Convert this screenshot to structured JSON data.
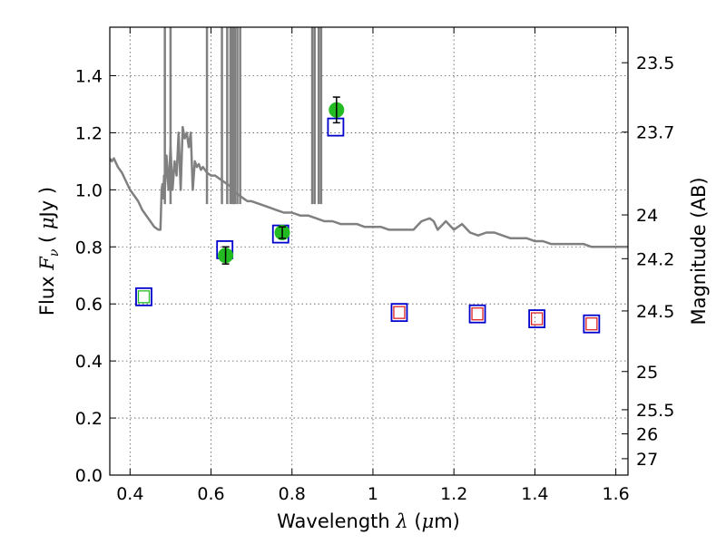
{
  "chart_data": {
    "type": "scatter",
    "xlabel": {
      "prefix": "Wavelength  ",
      "symbol": "λ",
      "suffix_open": " (",
      "unit_greek": "μ",
      "unit": "m)"
    },
    "ylabel": {
      "prefix": "Flux  ",
      "symbol": "F",
      "subscript": "ν",
      "suffix_open": "  ( ",
      "unit_greek": "μ",
      "unit": "Jy )"
    },
    "y2label": "Magnitude (AB)",
    "xlim": [
      0.35,
      1.63
    ],
    "ylim": [
      0.0,
      1.57
    ],
    "grid": true,
    "x_ticks": [
      {
        "value": 0.4,
        "label": "0.4"
      },
      {
        "value": 0.6,
        "label": "0.6"
      },
      {
        "value": 0.8,
        "label": "0.8"
      },
      {
        "value": 1.0,
        "label": "1"
      },
      {
        "value": 1.2,
        "label": "1.2"
      },
      {
        "value": 1.4,
        "label": "1.4"
      },
      {
        "value": 1.6,
        "label": "1.6"
      }
    ],
    "y_ticks": [
      {
        "value": 0.0,
        "label": "0.0"
      },
      {
        "value": 0.2,
        "label": "0.2"
      },
      {
        "value": 0.4,
        "label": "0.4"
      },
      {
        "value": 0.6,
        "label": "0.6"
      },
      {
        "value": 0.8,
        "label": "0.8"
      },
      {
        "value": 1.0,
        "label": "1.0"
      },
      {
        "value": 1.2,
        "label": "1.2"
      },
      {
        "value": 1.4,
        "label": "1.4"
      }
    ],
    "y2_ticks": [
      {
        "value": 23.5,
        "label": "23.5"
      },
      {
        "value": 23.7,
        "label": "23.7"
      },
      {
        "value": 24.0,
        "label": "24"
      },
      {
        "value": 24.2,
        "label": "24.2"
      },
      {
        "value": 24.5,
        "label": "24.5"
      },
      {
        "value": 25.0,
        "label": "25"
      },
      {
        "value": 25.5,
        "label": "25.5"
      },
      {
        "value": 26.0,
        "label": "26"
      },
      {
        "value": 27.0,
        "label": "27"
      }
    ],
    "colors": {
      "model": "#808080",
      "observed": "#22bb22",
      "model_photometry": "#0000cc",
      "green_square": "#22bb22",
      "red_square": "#dd2222",
      "errorbar": "#000000",
      "grid": "#555555"
    },
    "series": [
      {
        "kind": "model-spectrum",
        "x": [
          0.35,
          0.355,
          0.36,
          0.37,
          0.38,
          0.39,
          0.4,
          0.41,
          0.42,
          0.43,
          0.44,
          0.45,
          0.46,
          0.47,
          0.475,
          0.478,
          0.48,
          0.482,
          0.484,
          0.486,
          0.49,
          0.495,
          0.5,
          0.505,
          0.51,
          0.515,
          0.52,
          0.525,
          0.53,
          0.535,
          0.54,
          0.545,
          0.55,
          0.555,
          0.56,
          0.565,
          0.57,
          0.575,
          0.58,
          0.585,
          0.59,
          0.6,
          0.61,
          0.62,
          0.63,
          0.64,
          0.65,
          0.66,
          0.67,
          0.68,
          0.69,
          0.7,
          0.72,
          0.74,
          0.76,
          0.78,
          0.8,
          0.82,
          0.84,
          0.86,
          0.88,
          0.9,
          0.92,
          0.94,
          0.96,
          0.98,
          1.0,
          1.02,
          1.04,
          1.06,
          1.08,
          1.1,
          1.12,
          1.14,
          1.15,
          1.16,
          1.18,
          1.2,
          1.22,
          1.24,
          1.26,
          1.28,
          1.3,
          1.32,
          1.34,
          1.36,
          1.38,
          1.4,
          1.42,
          1.44,
          1.46,
          1.48,
          1.5,
          1.52,
          1.54,
          1.56,
          1.58,
          1.6,
          1.63
        ],
        "y": [
          1.11,
          1.1,
          1.11,
          1.08,
          1.06,
          1.03,
          1.0,
          0.98,
          0.96,
          0.93,
          0.91,
          0.89,
          0.87,
          0.86,
          0.86,
          1.0,
          1.02,
          0.97,
          1.05,
          1.0,
          1.12,
          1.0,
          1.15,
          1.0,
          1.1,
          1.05,
          1.2,
          1.0,
          1.22,
          1.18,
          1.2,
          1.15,
          1.2,
          1.0,
          1.1,
          1.08,
          1.09,
          1.07,
          1.08,
          1.07,
          1.06,
          1.05,
          1.05,
          1.04,
          1.03,
          1.02,
          1.01,
          0.99,
          0.98,
          0.97,
          0.96,
          0.96,
          0.95,
          0.94,
          0.93,
          0.92,
          0.92,
          0.91,
          0.91,
          0.9,
          0.89,
          0.89,
          0.88,
          0.88,
          0.88,
          0.87,
          0.87,
          0.87,
          0.86,
          0.86,
          0.86,
          0.86,
          0.89,
          0.9,
          0.89,
          0.86,
          0.89,
          0.86,
          0.88,
          0.85,
          0.84,
          0.85,
          0.85,
          0.84,
          0.83,
          0.83,
          0.83,
          0.82,
          0.82,
          0.81,
          0.81,
          0.81,
          0.81,
          0.81,
          0.8,
          0.8,
          0.8,
          0.8,
          0.8
        ]
      },
      {
        "kind": "emission-spikes",
        "x": [
          0.486,
          0.5,
          0.59,
          0.627,
          0.64,
          0.648,
          0.653,
          0.656,
          0.659,
          0.665,
          0.672,
          0.85,
          0.856,
          0.866,
          0.872
        ],
        "top": 1.57
      },
      {
        "kind": "model-photometry-squares",
        "x": [
          0.434,
          0.634,
          0.772,
          0.908,
          1.065,
          1.258,
          1.405,
          1.54
        ],
        "y": [
          0.625,
          0.79,
          0.845,
          1.22,
          0.57,
          0.565,
          0.548,
          0.53
        ],
        "inner": [
          "green",
          "none",
          "none",
          "none",
          "red",
          "red",
          "red",
          "red"
        ]
      },
      {
        "kind": "observed-photometry",
        "x": [
          0.636,
          0.776,
          0.91
        ],
        "y": [
          0.77,
          0.85,
          1.28
        ],
        "err": [
          0.03,
          0.02,
          0.045
        ]
      }
    ]
  }
}
